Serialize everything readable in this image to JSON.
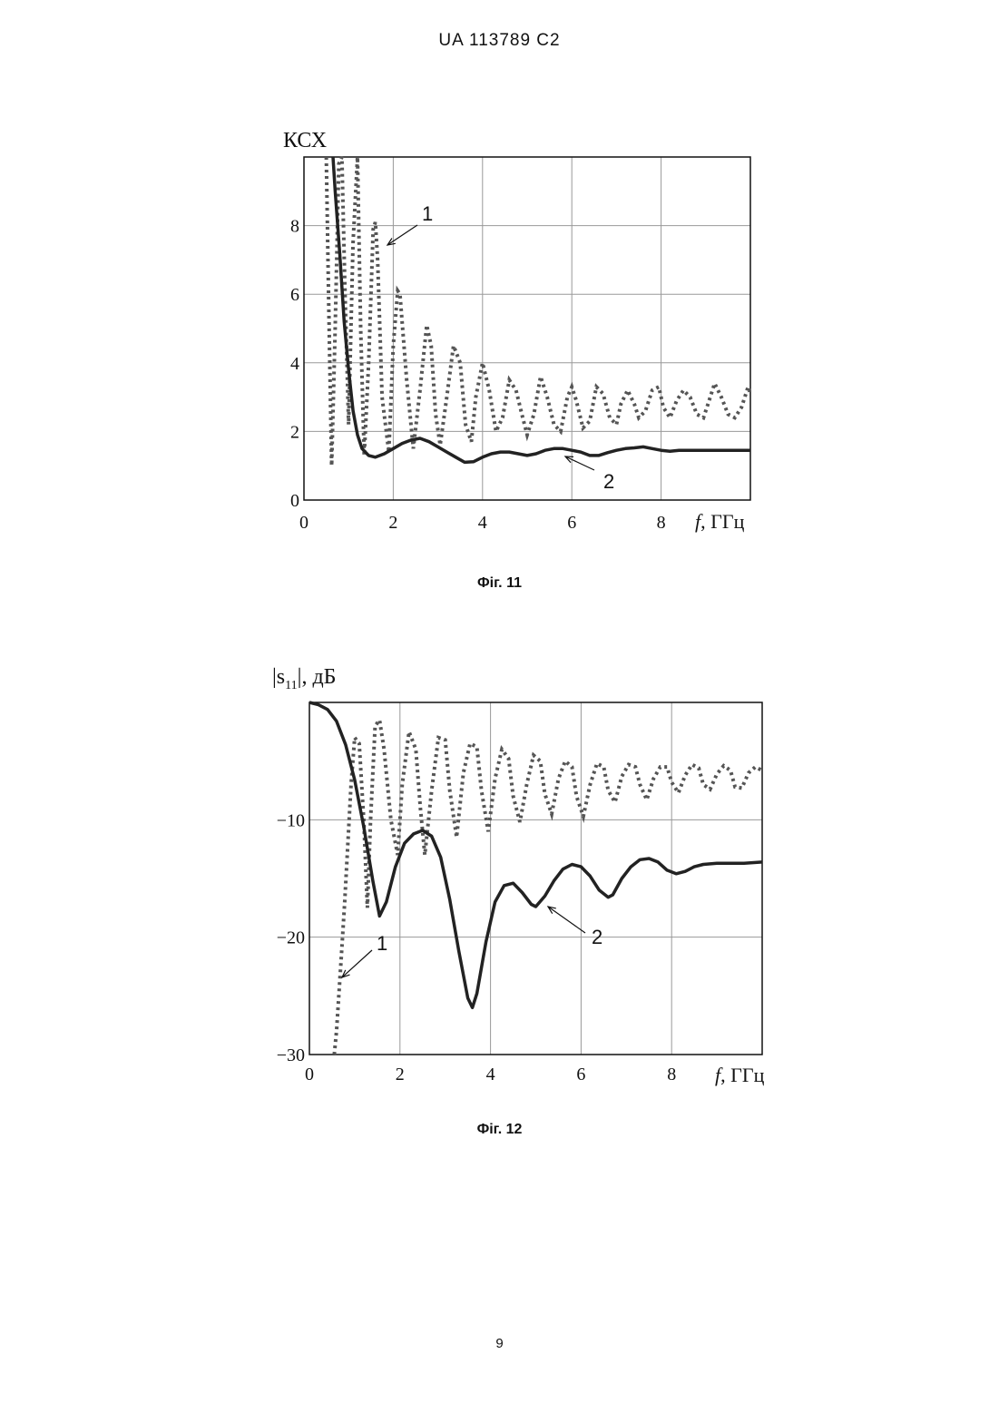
{
  "header": "UA   113789   C2",
  "page_number": "9",
  "figures": [
    {
      "caption": "Фіг. 11"
    },
    {
      "caption": "Фіг. 12"
    }
  ],
  "chart_data": [
    {
      "type": "line",
      "ylabel": "КСХ",
      "xlabel": "f, ГГц",
      "xlim": [
        0,
        10
      ],
      "ylim": [
        0,
        10
      ],
      "x_ticks": [
        "0",
        "2",
        "4",
        "6",
        "8"
      ],
      "y_ticks": [
        "0",
        "2",
        "4",
        "6",
        "8"
      ],
      "grid": true,
      "series": [
        {
          "name": "1",
          "style": "dotted",
          "x": [
            0.5,
            0.55,
            0.62,
            0.7,
            0.78,
            0.85,
            0.92,
            1.0,
            1.1,
            1.2,
            1.27,
            1.35,
            1.45,
            1.55,
            1.6,
            1.65,
            1.75,
            1.9,
            2.0,
            2.1,
            2.15,
            2.3,
            2.45,
            2.6,
            2.75,
            2.85,
            2.95,
            3.05,
            3.2,
            3.35,
            3.5,
            3.62,
            3.75,
            3.85,
            4.0,
            4.15,
            4.3,
            4.45,
            4.6,
            4.75,
            4.9,
            5.0,
            5.15,
            5.3,
            5.45,
            5.6,
            5.75,
            5.9,
            6.0,
            6.1,
            6.25,
            6.4,
            6.55,
            6.7,
            6.85,
            7.0,
            7.1,
            7.25,
            7.4,
            7.5,
            7.65,
            7.8,
            7.95,
            8.05,
            8.2,
            8.35,
            8.5,
            8.65,
            8.8,
            8.95,
            9.05,
            9.2,
            9.35,
            9.5,
            9.65,
            9.8,
            9.95,
            10.0
          ],
          "y": [
            10,
            6,
            1.0,
            5,
            9.8,
            10,
            6,
            2.2,
            7.5,
            10,
            5,
            1.3,
            4,
            7.9,
            8.1,
            7.0,
            3.0,
            1.4,
            4.5,
            6.1,
            6.0,
            3.5,
            1.5,
            3.2,
            5.1,
            4.5,
            2.5,
            1.6,
            3.0,
            4.5,
            4.0,
            2.2,
            1.7,
            3.0,
            4.0,
            3.2,
            2.0,
            2.4,
            3.5,
            3.2,
            2.4,
            1.9,
            2.5,
            3.6,
            3.0,
            2.2,
            2.0,
            3.0,
            3.3,
            2.9,
            2.1,
            2.3,
            3.3,
            3.1,
            2.4,
            2.2,
            2.8,
            3.2,
            2.8,
            2.4,
            2.6,
            3.2,
            3.3,
            2.7,
            2.4,
            2.9,
            3.2,
            3.0,
            2.5,
            2.4,
            2.8,
            3.4,
            3.0,
            2.5,
            2.4,
            2.7,
            3.3,
            3.1
          ]
        },
        {
          "name": "2",
          "style": "solid",
          "x": [
            0.65,
            0.7,
            0.8,
            0.9,
            1.0,
            1.1,
            1.2,
            1.3,
            1.45,
            1.6,
            1.8,
            2.0,
            2.2,
            2.4,
            2.6,
            2.8,
            3.0,
            3.2,
            3.4,
            3.6,
            3.8,
            4.0,
            4.2,
            4.4,
            4.6,
            4.8,
            5.0,
            5.2,
            5.4,
            5.6,
            5.8,
            6.0,
            6.2,
            6.4,
            6.6,
            6.8,
            7.0,
            7.2,
            7.4,
            7.6,
            7.8,
            8.0,
            8.2,
            8.4,
            8.6,
            8.8,
            9.0,
            9.2,
            9.4,
            9.6,
            9.8,
            10.0
          ],
          "y": [
            10,
            9.0,
            7.2,
            5.2,
            3.8,
            2.6,
            1.9,
            1.5,
            1.3,
            1.25,
            1.35,
            1.5,
            1.65,
            1.75,
            1.8,
            1.7,
            1.55,
            1.4,
            1.25,
            1.1,
            1.12,
            1.25,
            1.35,
            1.4,
            1.4,
            1.35,
            1.3,
            1.35,
            1.45,
            1.5,
            1.5,
            1.45,
            1.4,
            1.3,
            1.3,
            1.38,
            1.45,
            1.5,
            1.52,
            1.55,
            1.5,
            1.45,
            1.42,
            1.45,
            1.45,
            1.45,
            1.45,
            1.45,
            1.45,
            1.45,
            1.45,
            1.45
          ]
        }
      ],
      "annotations": [
        "1",
        "2"
      ]
    },
    {
      "type": "line",
      "ylabel": "|s11|, дБ",
      "xlabel": "f, ГГц",
      "xlim": [
        0,
        10
      ],
      "ylim": [
        -30,
        0
      ],
      "x_ticks": [
        "0",
        "2",
        "4",
        "6",
        "8"
      ],
      "y_ticks": [
        "−10",
        "−20",
        "−30"
      ],
      "y_tick_values": [
        -10,
        -20,
        -30
      ],
      "grid": true,
      "series": [
        {
          "name": "1",
          "style": "dotted",
          "x": [
            0.55,
            0.6,
            0.65,
            0.7,
            0.78,
            0.85,
            0.92,
            1.0,
            1.1,
            1.2,
            1.28,
            1.35,
            1.45,
            1.55,
            1.65,
            1.8,
            1.95,
            2.05,
            2.2,
            2.35,
            2.45,
            2.55,
            2.7,
            2.85,
            3.0,
            3.1,
            3.25,
            3.4,
            3.55,
            3.7,
            3.8,
            3.95,
            4.1,
            4.25,
            4.4,
            4.5,
            4.65,
            4.8,
            4.95,
            5.1,
            5.2,
            5.35,
            5.5,
            5.65,
            5.8,
            5.9,
            6.05,
            6.2,
            6.35,
            6.5,
            6.6,
            6.75,
            6.9,
            7.05,
            7.2,
            7.3,
            7.45,
            7.6,
            7.75,
            7.9,
            8.0,
            8.15,
            8.3,
            8.45,
            8.6,
            8.7,
            8.85,
            9.0,
            9.15,
            9.3,
            9.4,
            9.55,
            9.7,
            9.85,
            10.0
          ],
          "y": [
            -30,
            -28,
            -25,
            -22,
            -17,
            -12,
            -7,
            -3,
            -3.5,
            -10,
            -17.5,
            -10,
            -2,
            -1.5,
            -4,
            -10,
            -13,
            -7,
            -2.5,
            -4,
            -9,
            -13,
            -7.5,
            -3,
            -3.2,
            -7.5,
            -11.5,
            -6,
            -3.5,
            -3.8,
            -7.5,
            -11,
            -6.5,
            -4,
            -4.8,
            -8,
            -10.2,
            -7,
            -4.5,
            -5,
            -7.8,
            -9.5,
            -6.5,
            -5,
            -5.5,
            -8,
            -9.7,
            -7,
            -5.2,
            -5.5,
            -7.5,
            -8.5,
            -6.3,
            -5.3,
            -5.5,
            -7.0,
            -8.3,
            -6.5,
            -5.5,
            -5.5,
            -6.8,
            -7.7,
            -6.2,
            -5.3,
            -5.6,
            -7.0,
            -7.4,
            -6.1,
            -5.4,
            -5.8,
            -7.2,
            -7.3,
            -6.0,
            -5.5,
            -5.8
          ]
        },
        {
          "name": "2",
          "style": "solid",
          "x": [
            0.0,
            0.2,
            0.4,
            0.6,
            0.8,
            1.0,
            1.2,
            1.4,
            1.55,
            1.7,
            1.9,
            2.1,
            2.3,
            2.5,
            2.7,
            2.9,
            3.1,
            3.3,
            3.5,
            3.6,
            3.7,
            3.9,
            4.1,
            4.3,
            4.5,
            4.7,
            4.9,
            5.0,
            5.2,
            5.4,
            5.6,
            5.8,
            6.0,
            6.2,
            6.4,
            6.6,
            6.7,
            6.9,
            7.1,
            7.3,
            7.5,
            7.7,
            7.9,
            8.1,
            8.3,
            8.5,
            8.7,
            9.0,
            9.3,
            9.6,
            10.0
          ],
          "y": [
            0,
            -0.2,
            -0.6,
            -1.6,
            -3.6,
            -6.6,
            -10.6,
            -15.2,
            -18.2,
            -17.0,
            -14.0,
            -12.0,
            -11.2,
            -10.9,
            -11.4,
            -13.2,
            -16.8,
            -21.2,
            -25.2,
            -26.0,
            -24.8,
            -20.4,
            -17.0,
            -15.6,
            -15.4,
            -16.2,
            -17.2,
            -17.4,
            -16.5,
            -15.2,
            -14.2,
            -13.8,
            -14.0,
            -14.8,
            -16.0,
            -16.6,
            -16.4,
            -15.0,
            -14.0,
            -13.4,
            -13.3,
            -13.6,
            -14.3,
            -14.6,
            -14.4,
            -14.0,
            -13.8,
            -13.7,
            -13.7,
            -13.7,
            -13.6
          ]
        }
      ],
      "annotations": [
        "1",
        "2"
      ]
    }
  ]
}
